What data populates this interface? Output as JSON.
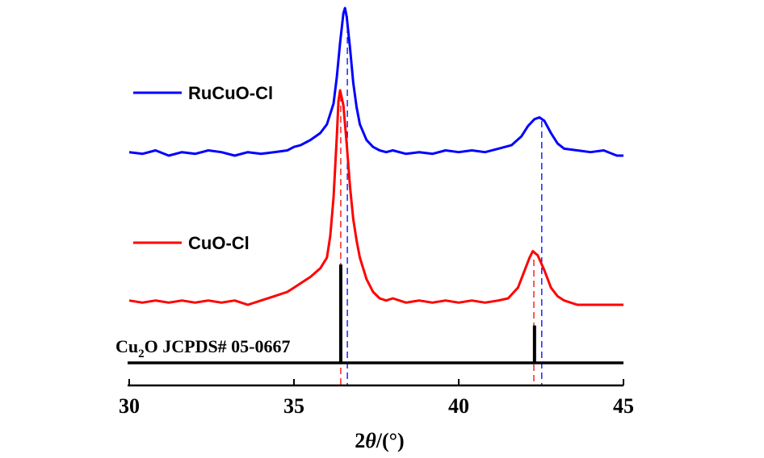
{
  "chart_data": {
    "type": "line",
    "title": "",
    "xlabel_prefix": "2",
    "xlabel_symbol": "θ",
    "xlabel_suffix": "/(°)",
    "ylabel": "",
    "xlim": [
      30,
      45
    ],
    "x_ticks": [
      "30",
      "35",
      "40",
      "45"
    ],
    "x_tick_values": [
      30,
      35,
      40,
      45
    ],
    "grid": false,
    "series": [
      {
        "name": "RuCuO-Cl",
        "color": "#0000ff",
        "offset": 1.05,
        "x": [
          30.0,
          30.4,
          30.8,
          31.2,
          31.6,
          32.0,
          32.4,
          32.8,
          33.2,
          33.6,
          34.0,
          34.4,
          34.8,
          35.0,
          35.2,
          35.5,
          35.8,
          36.0,
          36.2,
          36.3,
          36.4,
          36.5,
          36.55,
          36.6,
          36.7,
          36.8,
          36.9,
          37.0,
          37.2,
          37.4,
          37.6,
          37.8,
          38.0,
          38.4,
          38.8,
          39.2,
          39.6,
          40.0,
          40.4,
          40.8,
          41.2,
          41.6,
          41.9,
          42.1,
          42.3,
          42.45,
          42.6,
          42.8,
          43.0,
          43.2,
          43.6,
          44.0,
          44.4,
          44.8,
          45.0
        ],
        "y": [
          0.02,
          0.01,
          0.03,
          0.0,
          0.02,
          0.01,
          0.03,
          0.02,
          0.0,
          0.02,
          0.01,
          0.02,
          0.03,
          0.05,
          0.06,
          0.09,
          0.13,
          0.18,
          0.3,
          0.45,
          0.65,
          0.82,
          0.85,
          0.8,
          0.62,
          0.42,
          0.28,
          0.18,
          0.09,
          0.05,
          0.03,
          0.02,
          0.03,
          0.01,
          0.02,
          0.01,
          0.03,
          0.02,
          0.03,
          0.02,
          0.04,
          0.06,
          0.11,
          0.17,
          0.21,
          0.22,
          0.2,
          0.13,
          0.07,
          0.04,
          0.03,
          0.02,
          0.03,
          0.0,
          0.0
        ]
      },
      {
        "name": "CuO-Cl",
        "color": "#ff0000",
        "offset": 0.0,
        "x": [
          30.0,
          30.4,
          30.8,
          31.2,
          31.6,
          32.0,
          32.4,
          32.8,
          33.2,
          33.6,
          34.0,
          34.4,
          34.8,
          35.0,
          35.2,
          35.5,
          35.8,
          36.0,
          36.1,
          36.2,
          36.3,
          36.35,
          36.4,
          36.5,
          36.6,
          36.7,
          36.8,
          36.9,
          37.0,
          37.2,
          37.4,
          37.6,
          37.8,
          38.0,
          38.4,
          38.8,
          39.2,
          39.6,
          40.0,
          40.4,
          40.8,
          41.2,
          41.5,
          41.8,
          42.0,
          42.15,
          42.25,
          42.4,
          42.6,
          42.8,
          43.0,
          43.2,
          43.6,
          44.0,
          44.4,
          44.8,
          45.0
        ],
        "y": [
          0.02,
          0.01,
          0.02,
          0.01,
          0.02,
          0.01,
          0.02,
          0.01,
          0.02,
          0.0,
          0.02,
          0.04,
          0.06,
          0.08,
          0.1,
          0.13,
          0.17,
          0.22,
          0.32,
          0.5,
          0.78,
          0.95,
          1.0,
          0.93,
          0.75,
          0.55,
          0.4,
          0.3,
          0.22,
          0.12,
          0.06,
          0.03,
          0.02,
          0.03,
          0.01,
          0.02,
          0.01,
          0.02,
          0.01,
          0.02,
          0.01,
          0.02,
          0.03,
          0.08,
          0.16,
          0.22,
          0.25,
          0.23,
          0.16,
          0.08,
          0.04,
          0.02,
          0.0,
          0.0,
          0.0,
          0.0,
          0.0
        ]
      }
    ],
    "reference": {
      "name_prefix": "Cu",
      "name_sub": "2",
      "name_suffix": "O JCPDS# 05-0667",
      "color": "#000000",
      "peaks": [
        {
          "x": 36.42,
          "rel_height": 1.0
        },
        {
          "x": 42.3,
          "rel_height": 0.38
        }
      ]
    },
    "dashed_guides": [
      {
        "x": 36.42,
        "color": "#ff0000"
      },
      {
        "x": 36.62,
        "color": "#0000ff"
      },
      {
        "x": 42.28,
        "color": "#ff0000"
      },
      {
        "x": 42.52,
        "color": "#0000ff"
      }
    ]
  }
}
